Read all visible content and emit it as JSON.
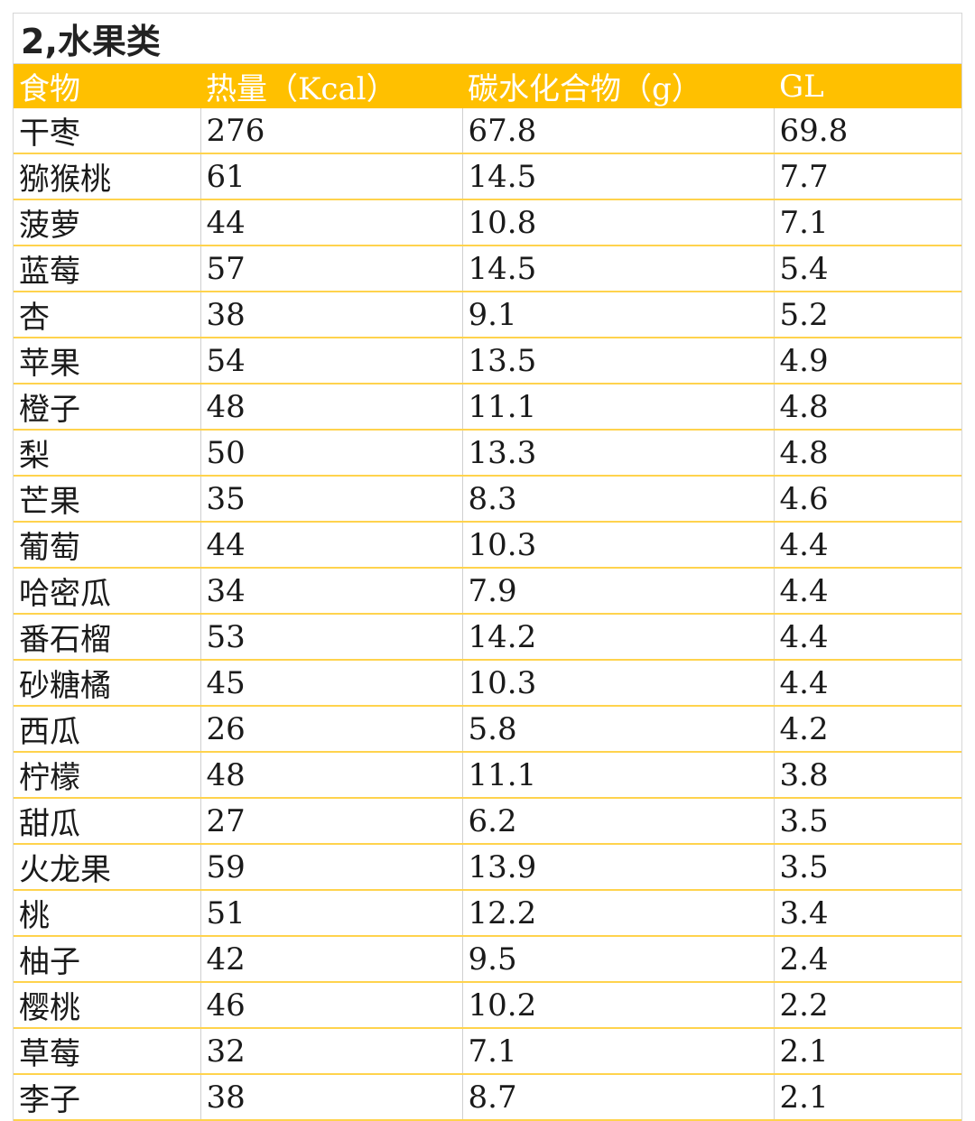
{
  "title": "2,水果类",
  "columns": [
    "食物",
    "热量（Kcal）",
    "碳水化合物（g）",
    "GL"
  ],
  "rows": [
    [
      "干枣",
      "276",
      "67.8",
      "69.8"
    ],
    [
      "猕猴桃",
      "61",
      "14.5",
      "7.7"
    ],
    [
      "菠萝",
      "44",
      "10.8",
      "7.1"
    ],
    [
      "蓝莓",
      "57",
      "14.5",
      "5.4"
    ],
    [
      "杏",
      "38",
      "9.1",
      "5.2"
    ],
    [
      "苹果",
      "54",
      "13.5",
      "4.9"
    ],
    [
      "橙子",
      "48",
      "11.1",
      "4.8"
    ],
    [
      "梨",
      "50",
      "13.3",
      "4.8"
    ],
    [
      "芒果",
      "35",
      "8.3",
      "4.6"
    ],
    [
      "葡萄",
      "44",
      "10.3",
      "4.4"
    ],
    [
      "哈密瓜",
      "34",
      "7.9",
      "4.4"
    ],
    [
      "番石榴",
      "53",
      "14.2",
      "4.4"
    ],
    [
      "砂糖橘",
      "45",
      "10.3",
      "4.4"
    ],
    [
      "西瓜",
      "26",
      "5.8",
      "4.2"
    ],
    [
      "柠檬",
      "48",
      "11.1",
      "3.8"
    ],
    [
      "甜瓜",
      "27",
      "6.2",
      "3.5"
    ],
    [
      "火龙果",
      "59",
      "13.9",
      "3.5"
    ],
    [
      "桃",
      "51",
      "12.2",
      "3.4"
    ],
    [
      "柚子",
      "42",
      "9.5",
      "2.4"
    ],
    [
      "樱桃",
      "46",
      "10.2",
      "2.2"
    ],
    [
      "草莓",
      "32",
      "7.1",
      "2.1"
    ],
    [
      "李子",
      "38",
      "8.7",
      "2.1"
    ]
  ],
  "colors": {
    "header_bg": "#ffc000",
    "header_text": "#ffffff",
    "row_border": "#ffd34d"
  }
}
